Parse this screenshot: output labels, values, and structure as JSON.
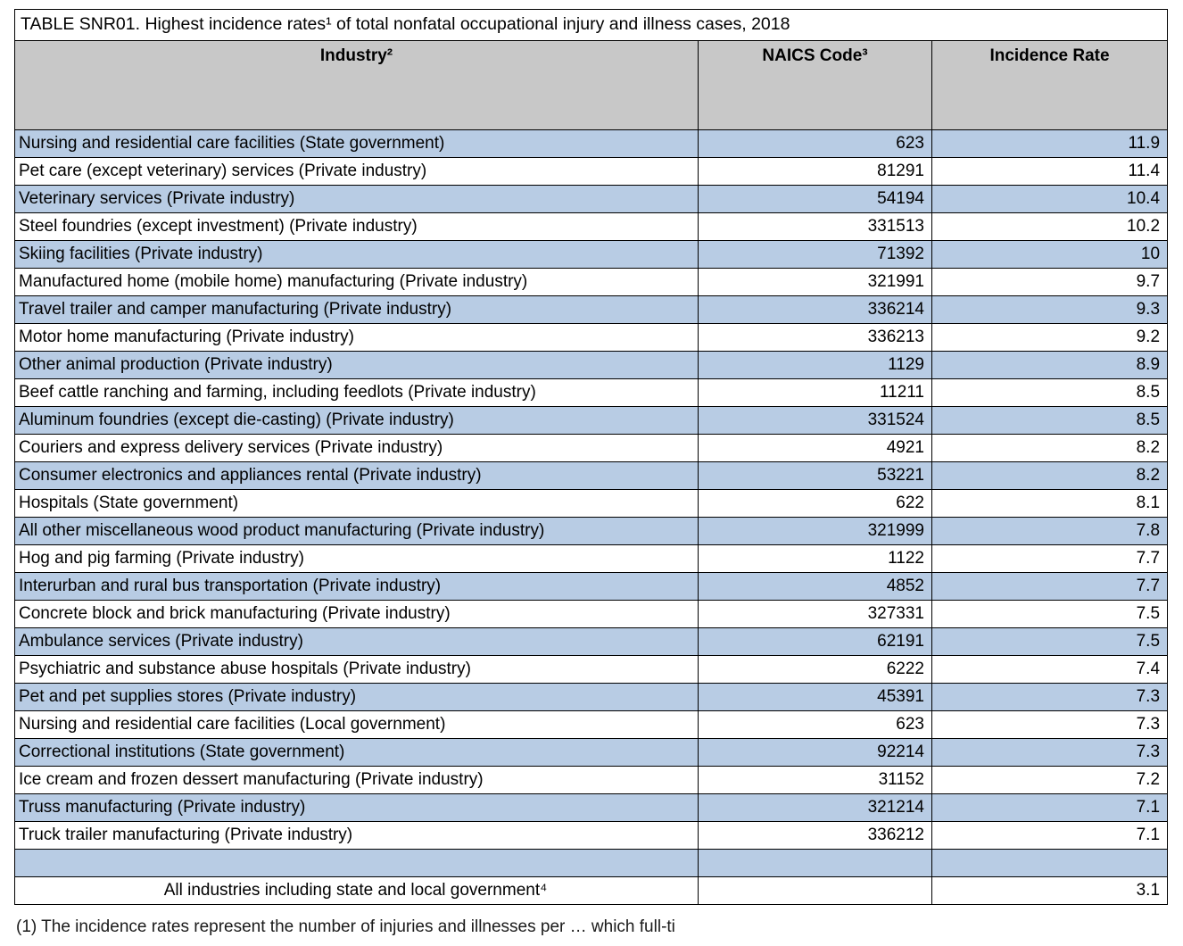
{
  "title": "TABLE SNR01. Highest incidence rates¹ of total nonfatal occupational injury and illness cases, 2018",
  "table": {
    "headers": [
      "Industry²",
      "NAICS Code³",
      "Incidence Rate"
    ],
    "rows": [
      {
        "industry": "Nursing and residential care facilities (State government)",
        "naics": "623",
        "rate": "11.9"
      },
      {
        "industry": "Pet care (except veterinary) services (Private industry)",
        "naics": "81291",
        "rate": "11.4"
      },
      {
        "industry": "Veterinary services (Private industry)",
        "naics": "54194",
        "rate": "10.4"
      },
      {
        "industry": "Steel foundries (except investment) (Private industry)",
        "naics": "331513",
        "rate": "10.2"
      },
      {
        "industry": "Skiing facilities (Private industry)",
        "naics": "71392",
        "rate": "10"
      },
      {
        "industry": "Manufactured home (mobile home) manufacturing (Private industry)",
        "naics": "321991",
        "rate": "9.7"
      },
      {
        "industry": "Travel trailer and camper manufacturing (Private industry)",
        "naics": "336214",
        "rate": "9.3"
      },
      {
        "industry": "Motor home manufacturing (Private industry)",
        "naics": "336213",
        "rate": "9.2"
      },
      {
        "industry": "Other animal production (Private industry)",
        "naics": "1129",
        "rate": "8.9"
      },
      {
        "industry": "Beef cattle ranching and farming, including feedlots (Private industry)",
        "naics": "11211",
        "rate": "8.5"
      },
      {
        "industry": "Aluminum foundries (except die-casting) (Private industry)",
        "naics": "331524",
        "rate": "8.5"
      },
      {
        "industry": "Couriers and express delivery services (Private industry)",
        "naics": "4921",
        "rate": "8.2"
      },
      {
        "industry": "Consumer electronics and appliances rental (Private industry)",
        "naics": "53221",
        "rate": "8.2"
      },
      {
        "industry": "Hospitals (State government)",
        "naics": "622",
        "rate": "8.1"
      },
      {
        "industry": "All other miscellaneous wood product manufacturing (Private industry)",
        "naics": "321999",
        "rate": "7.8"
      },
      {
        "industry": "Hog and pig farming (Private industry)",
        "naics": "1122",
        "rate": "7.7"
      },
      {
        "industry": "Interurban and rural bus transportation (Private industry)",
        "naics": "4852",
        "rate": "7.7"
      },
      {
        "industry": "Concrete block and brick manufacturing (Private industry)",
        "naics": "327331",
        "rate": "7.5"
      },
      {
        "industry": "Ambulance services (Private industry)",
        "naics": "62191",
        "rate": "7.5"
      },
      {
        "industry": "Psychiatric and substance abuse hospitals (Private industry)",
        "naics": "6222",
        "rate": "7.4"
      },
      {
        "industry": "Pet and pet supplies stores (Private industry)",
        "naics": "45391",
        "rate": "7.3"
      },
      {
        "industry": "Nursing and residential care facilities (Local government)",
        "naics": "623",
        "rate": "7.3"
      },
      {
        "industry": "Correctional institutions (State government)",
        "naics": "92214",
        "rate": "7.3"
      },
      {
        "industry": "Ice cream and frozen dessert manufacturing (Private industry)",
        "naics": "31152",
        "rate": "7.2"
      },
      {
        "industry": "Truss manufacturing (Private industry)",
        "naics": "321214",
        "rate": "7.1"
      },
      {
        "industry": "Truck trailer manufacturing (Private industry)",
        "naics": "336212",
        "rate": "7.1"
      },
      {
        "industry": "",
        "naics": "",
        "rate": ""
      },
      {
        "industry": "All industries including state and local government⁴",
        "naics": "",
        "rate": "3.1",
        "align": "center"
      }
    ]
  },
  "footnote": "(1) The incidence rates represent the number of injuries and illnesses per … which full-ti",
  "colors": {
    "row_alt": "#b8cce4",
    "header_bg": "#c8c8c8"
  }
}
